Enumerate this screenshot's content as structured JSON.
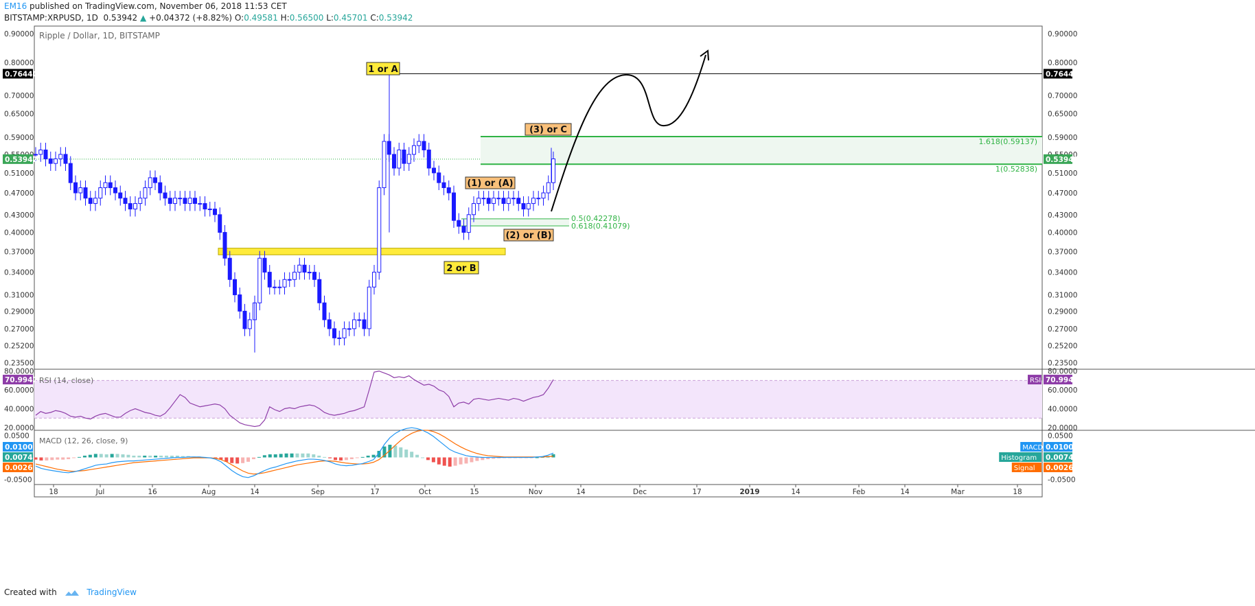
{
  "header": {
    "author": "EM16",
    "published": "published on TradingView.com, November 06, 2018 11:53 CET",
    "symbol": "BITSTAMP:XRPUSD, 1D",
    "last": "0.53942",
    "change_arrow": "▲",
    "change": "+0.04372 (+8.82%)",
    "o_label": "O:",
    "o": "0.49581",
    "h_label": "H:",
    "h": "0.56500",
    "l_label": "L:",
    "l": "0.45701",
    "c_label": "C:",
    "c": "0.53942"
  },
  "footer": {
    "created_with": "Created with",
    "brand": "TradingView"
  },
  "colors": {
    "candle": "#1a1aff",
    "fib": "#2fb344",
    "rsi": "#8e3da8",
    "rsi_fill": "#f3e5fb",
    "macd": "#2196f3",
    "signal": "#ff6d00",
    "hist_up": "#26a69a",
    "hist_down": "#ef5350",
    "support": "#ffeb3b"
  },
  "chart_data": [
    {
      "type": "candlestick",
      "title": "Ripple / Dollar, 1D, BITSTAMP",
      "y_scale": "log",
      "y_ticks": [
        "0.90000",
        "0.80000",
        "0.70000",
        "0.65000",
        "0.59000",
        "0.55000",
        "0.51000",
        "0.47000",
        "0.43000",
        "0.40000",
        "0.37000",
        "0.34000",
        "0.31000",
        "0.29000",
        "0.27000",
        "0.25200",
        "0.23500"
      ],
      "x_ticks": [
        "18",
        "Jul",
        "16",
        "Aug",
        "14",
        "Sep",
        "17",
        "Oct",
        "15",
        "Nov",
        "14",
        "Dec",
        "17",
        "2019",
        "14",
        "Feb",
        "14",
        "Mar",
        "18"
      ],
      "last_price": "0.53942",
      "resistance": "0.76440",
      "series_close": [
        0.55,
        0.56,
        0.54,
        0.53,
        0.54,
        0.55,
        0.53,
        0.49,
        0.47,
        0.48,
        0.46,
        0.45,
        0.46,
        0.48,
        0.49,
        0.48,
        0.47,
        0.46,
        0.45,
        0.44,
        0.45,
        0.46,
        0.48,
        0.5,
        0.49,
        0.47,
        0.46,
        0.45,
        0.46,
        0.46,
        0.45,
        0.46,
        0.45,
        0.45,
        0.44,
        0.44,
        0.43,
        0.4,
        0.36,
        0.33,
        0.31,
        0.29,
        0.27,
        0.28,
        0.3,
        0.36,
        0.34,
        0.32,
        0.32,
        0.32,
        0.33,
        0.33,
        0.34,
        0.35,
        0.34,
        0.34,
        0.33,
        0.3,
        0.28,
        0.27,
        0.26,
        0.26,
        0.27,
        0.27,
        0.28,
        0.28,
        0.27,
        0.32,
        0.34,
        0.48,
        0.58,
        0.55,
        0.52,
        0.56,
        0.53,
        0.55,
        0.57,
        0.58,
        0.56,
        0.52,
        0.51,
        0.49,
        0.48,
        0.47,
        0.42,
        0.41,
        0.4,
        0.43,
        0.45,
        0.46,
        0.46,
        0.45,
        0.46,
        0.46,
        0.45,
        0.46,
        0.46,
        0.45,
        0.44,
        0.45,
        0.46,
        0.46,
        0.47,
        0.49,
        0.54
      ],
      "annotations": [
        {
          "label": "1 or A",
          "style": "yellow"
        },
        {
          "label": "2 or B",
          "style": "yellow"
        },
        {
          "label": "(1) or (A)",
          "style": "orange"
        },
        {
          "label": "(2) or (B)",
          "style": "orange"
        },
        {
          "label": "(3) or C",
          "style": "orange"
        }
      ],
      "fib_levels": [
        {
          "label": "1.618(0.59137)",
          "value": 0.59137
        },
        {
          "label": "1(0.52838)",
          "value": 0.52838
        },
        {
          "label": "0.5(0.42278)",
          "value": 0.42278
        },
        {
          "label": "0.618(0.41079)",
          "value": 0.41079
        }
      ],
      "support_zone": [
        0.365,
        0.375
      ]
    },
    {
      "type": "line",
      "title": "RSI (14, close)",
      "y_ticks": [
        "80.0000",
        "60.0000",
        "40.0000",
        "20.0000"
      ],
      "ylim": [
        17,
        82
      ],
      "band": [
        30,
        70
      ],
      "last": "70.9947",
      "tag": "RSI",
      "values": [
        33,
        37,
        35,
        36,
        38,
        37,
        35,
        32,
        31,
        32,
        30,
        29,
        32,
        34,
        35,
        33,
        31,
        31,
        35,
        38,
        40,
        38,
        36,
        35,
        33,
        32,
        35,
        41,
        48,
        55,
        52,
        46,
        44,
        42,
        43,
        44,
        45,
        44,
        40,
        33,
        29,
        25,
        23,
        22,
        21,
        22,
        28,
        42,
        39,
        37,
        40,
        41,
        40,
        42,
        43,
        44,
        43,
        40,
        36,
        34,
        33,
        34,
        35,
        37,
        38,
        40,
        42,
        60,
        79,
        80,
        78,
        76,
        73,
        74,
        73,
        75,
        71,
        68,
        65,
        66,
        64,
        60,
        58,
        53,
        42,
        46,
        47,
        45,
        50,
        51,
        50,
        49,
        50,
        51,
        50,
        49,
        51,
        50,
        48,
        50,
        52,
        53,
        55,
        62,
        70.99
      ]
    },
    {
      "type": "line",
      "title": "MACD (12, 26, close, 9)",
      "y_ticks": [
        "0.0500",
        "0.0000",
        "-0.0500"
      ],
      "ylim": [
        -0.062,
        0.062
      ],
      "macd_last": "0.0100",
      "hist_last": "0.0074",
      "signal_last": "0.0026",
      "legend": [
        "MACD",
        "Histogram",
        "Signal"
      ],
      "macd": [
        -0.02,
        -0.025,
        -0.028,
        -0.03,
        -0.032,
        -0.034,
        -0.035,
        -0.033,
        -0.03,
        -0.026,
        -0.022,
        -0.018,
        -0.016,
        -0.015,
        -0.012,
        -0.01,
        -0.009,
        -0.008,
        -0.008,
        -0.007,
        -0.006,
        -0.005,
        -0.004,
        -0.003,
        -0.002,
        -0.001,
        0.0,
        0.0,
        0.001,
        0.001,
        0.001,
        0.0,
        -0.001,
        -0.004,
        -0.01,
        -0.02,
        -0.03,
        -0.038,
        -0.044,
        -0.046,
        -0.042,
        -0.036,
        -0.03,
        -0.025,
        -0.022,
        -0.018,
        -0.014,
        -0.011,
        -0.008,
        -0.006,
        -0.004,
        -0.004,
        -0.005,
        -0.007,
        -0.01,
        -0.015,
        -0.018,
        -0.019,
        -0.018,
        -0.016,
        -0.014,
        -0.01,
        -0.005,
        0.01,
        0.03,
        0.045,
        0.055,
        0.062,
        0.066,
        0.068,
        0.066,
        0.062,
        0.056,
        0.048,
        0.038,
        0.028,
        0.018,
        0.012,
        0.008,
        0.004,
        0.002,
        0.001,
        0.0,
        0.0,
        0.0,
        0.0,
        0.0,
        0.0,
        0.0,
        0.0,
        0.0,
        0.0,
        0.001,
        0.002,
        0.005,
        0.01
      ],
      "signal": [
        -0.015,
        -0.018,
        -0.021,
        -0.024,
        -0.027,
        -0.029,
        -0.031,
        -0.032,
        -0.031,
        -0.03,
        -0.028,
        -0.026,
        -0.024,
        -0.022,
        -0.02,
        -0.018,
        -0.016,
        -0.014,
        -0.012,
        -0.011,
        -0.01,
        -0.009,
        -0.008,
        -0.007,
        -0.006,
        -0.005,
        -0.004,
        -0.003,
        -0.002,
        -0.001,
        -0.001,
        -0.001,
        -0.001,
        -0.002,
        -0.005,
        -0.01,
        -0.017,
        -0.024,
        -0.031,
        -0.036,
        -0.038,
        -0.037,
        -0.035,
        -0.032,
        -0.029,
        -0.026,
        -0.023,
        -0.02,
        -0.017,
        -0.015,
        -0.013,
        -0.011,
        -0.009,
        -0.008,
        -0.008,
        -0.009,
        -0.011,
        -0.013,
        -0.014,
        -0.015,
        -0.015,
        -0.014,
        -0.011,
        -0.005,
        0.005,
        0.016,
        0.028,
        0.039,
        0.048,
        0.055,
        0.06,
        0.062,
        0.062,
        0.059,
        0.054,
        0.047,
        0.039,
        0.031,
        0.024,
        0.018,
        0.013,
        0.009,
        0.006,
        0.004,
        0.003,
        0.002,
        0.001,
        0.001,
        0.001,
        0.001,
        0.001,
        0.001,
        0.001,
        0.001,
        0.002,
        0.0026
      ]
    }
  ]
}
